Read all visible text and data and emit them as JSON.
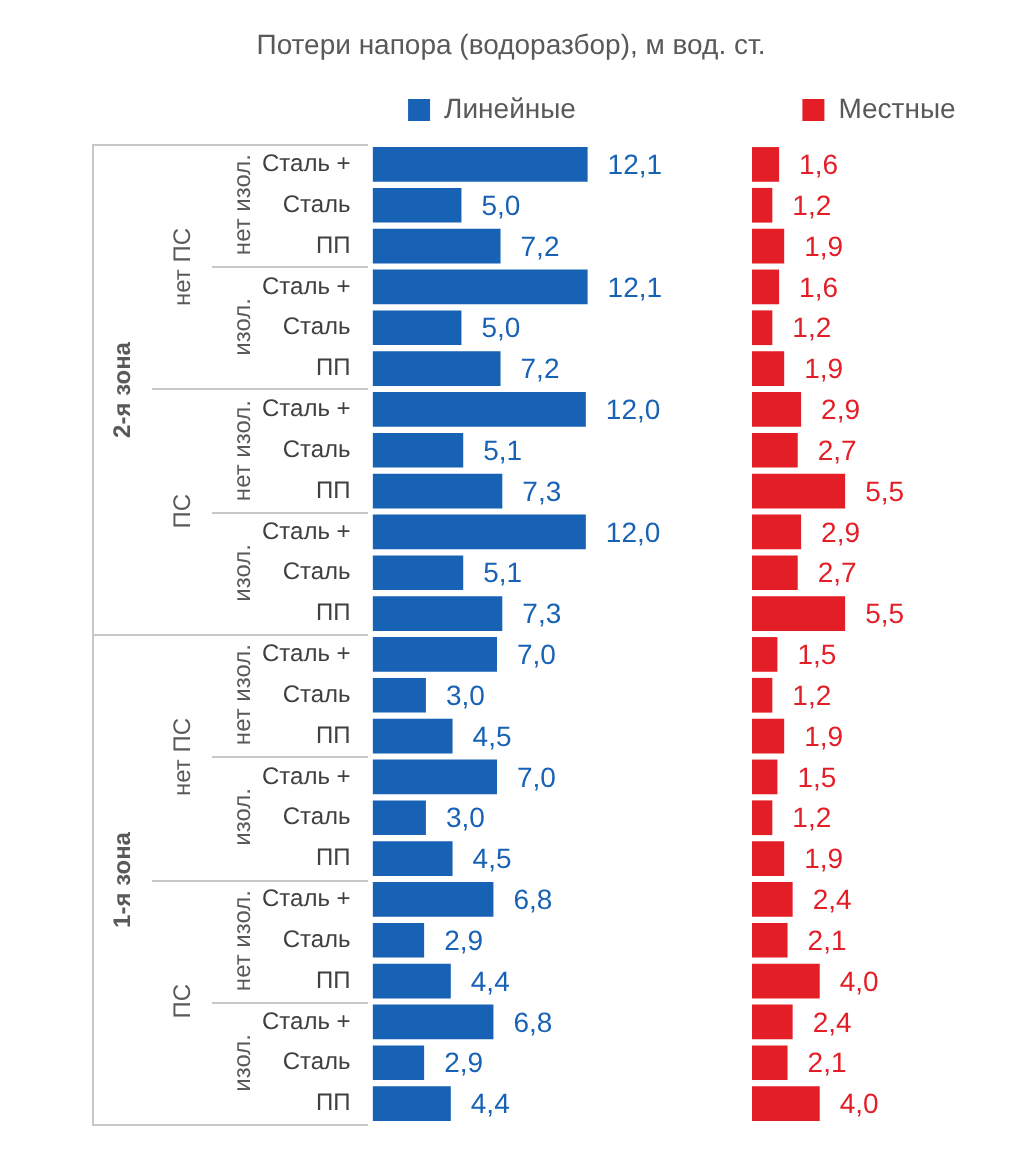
{
  "chart_data": [
    {
      "type": "bar",
      "orientation": "horizontal",
      "title": "Потери напора (водоразбор), м вод. ст.",
      "categories": [
        "Сталь +",
        "Сталь",
        "ПП",
        "Сталь +",
        "Сталь",
        "ПП",
        "Сталь +",
        "Сталь",
        "ПП",
        "Сталь +",
        "Сталь",
        "ПП",
        "Сталь +",
        "Сталь",
        "ПП",
        "Сталь +",
        "Сталь",
        "ПП",
        "Сталь +",
        "Сталь",
        "ПП",
        "Сталь +",
        "Сталь",
        "ПП"
      ],
      "series": [
        {
          "name": "Линейные",
          "color": "#1862b5",
          "values": [
            12.1,
            5.0,
            7.2,
            12.1,
            5.0,
            7.2,
            12.0,
            5.1,
            7.3,
            12.0,
            5.1,
            7.3,
            7.0,
            3.0,
            4.5,
            7.0,
            3.0,
            4.5,
            6.8,
            2.9,
            4.4,
            6.8,
            2.9,
            4.4
          ],
          "value_labels": [
            "12,1",
            "5,0",
            "7,2",
            "12,1",
            "5,0",
            "7,2",
            "12,0",
            "5,1",
            "7,3",
            "12,0",
            "5,1",
            "7,3",
            "7,0",
            "3,0",
            "4,5",
            "7,0",
            "3,0",
            "4,5",
            "6,8",
            "2,9",
            "4,4",
            "6,8",
            "2,9",
            "4,4"
          ]
        }
      ],
      "tick_labels": "y",
      "grid": false,
      "legend": "top",
      "annotations": [
        "2-я зона",
        "нет ПС",
        "нет изол.",
        "изол.",
        "ПС",
        "нет изол.",
        "изол.",
        "1-я зона",
        "нет ПС",
        "нет изол.",
        "изол.",
        "ПС",
        "нет изол.",
        "изол."
      ]
    },
    {
      "type": "bar",
      "orientation": "horizontal",
      "categories": [
        null,
        null,
        null,
        null,
        null,
        null,
        null,
        null,
        null,
        null,
        null,
        null,
        null,
        null,
        null,
        null,
        null,
        null,
        null,
        null,
        null,
        null,
        null,
        null
      ],
      "series": [
        {
          "name": "Местные",
          "color": "#e41e26",
          "values": [
            1.6,
            1.2,
            1.9,
            1.6,
            1.2,
            1.9,
            2.9,
            2.7,
            5.5,
            2.9,
            2.7,
            5.5,
            1.5,
            1.2,
            1.9,
            1.5,
            1.2,
            1.9,
            2.4,
            2.1,
            4.0,
            2.4,
            2.1,
            4.0
          ],
          "value_labels": [
            "1,6",
            "1,2",
            "1,9",
            "1,6",
            "1,2",
            "1,9",
            "2,9",
            "2,7",
            "5,5",
            "2,9",
            "2,7",
            "5,5",
            "1,5",
            "1,2",
            "1,9",
            "1,5",
            "1,2",
            "1,9",
            "2,4",
            "2,1",
            "4,0",
            "2,4",
            "2,1",
            "4,0"
          ]
        }
      ],
      "tick_labels": false,
      "grid": false,
      "legend": "top"
    }
  ]
}
